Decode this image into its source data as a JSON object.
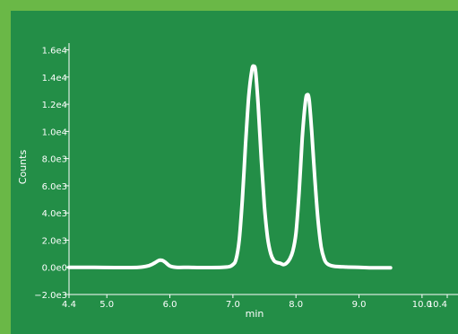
{
  "colors": {
    "outer_border": "#6ab847",
    "plot_background": "#238e47",
    "trace": "#ffffff"
  },
  "chart_data": {
    "type": "line",
    "xlabel": "min",
    "ylabel": "Counts",
    "xlim": [
      4.4,
      10.4
    ],
    "ylim": [
      -2000,
      16500
    ],
    "grid": false,
    "x_ticks": [
      4.4,
      5.0,
      6.0,
      7.0,
      8.0,
      9.0,
      10.0,
      10.4
    ],
    "x_tick_labels": [
      "4.4",
      "5.0",
      "6.0",
      "7.0",
      "8.0",
      "9.0",
      "10.0",
      "10.4"
    ],
    "y_ticks": [
      -2000,
      0,
      2000,
      4000,
      6000,
      8000,
      10000,
      12000,
      14000,
      16000
    ],
    "y_tick_labels": [
      "−2.0e3",
      "0.0e0",
      "2.0e3",
      "4.0e3",
      "6.0e3",
      "8.0e3",
      "1.0e4",
      "1.2e4",
      "1.4e4",
      "1.6e4"
    ],
    "series": [
      {
        "x": [
          4.4,
          4.8,
          5.2,
          5.5,
          5.65,
          5.75,
          5.82,
          5.87,
          5.92,
          6.0,
          6.1,
          6.3,
          6.6,
          6.9,
          7.0,
          7.05,
          7.1,
          7.15,
          7.2,
          7.25,
          7.3,
          7.33,
          7.36,
          7.4,
          7.45,
          7.5,
          7.55,
          7.6,
          7.65,
          7.7,
          7.75,
          7.8,
          7.85,
          7.9,
          7.95,
          8.0,
          8.05,
          8.1,
          8.15,
          8.18,
          8.21,
          8.25,
          8.3,
          8.35,
          8.4,
          8.45,
          8.5,
          8.6,
          8.8,
          9.0,
          9.2,
          9.5
        ],
        "y": [
          0,
          0,
          -20,
          0,
          100,
          300,
          500,
          520,
          400,
          100,
          0,
          0,
          -20,
          20,
          200,
          600,
          2000,
          5000,
          9000,
          12500,
          14500,
          14800,
          14400,
          12000,
          8000,
          4500,
          2200,
          1000,
          500,
          350,
          300,
          200,
          300,
          600,
          1200,
          2500,
          5500,
          9500,
          12200,
          12700,
          12300,
          10000,
          6500,
          3500,
          1500,
          600,
          250,
          80,
          20,
          0,
          -30,
          -30
        ]
      }
    ]
  }
}
